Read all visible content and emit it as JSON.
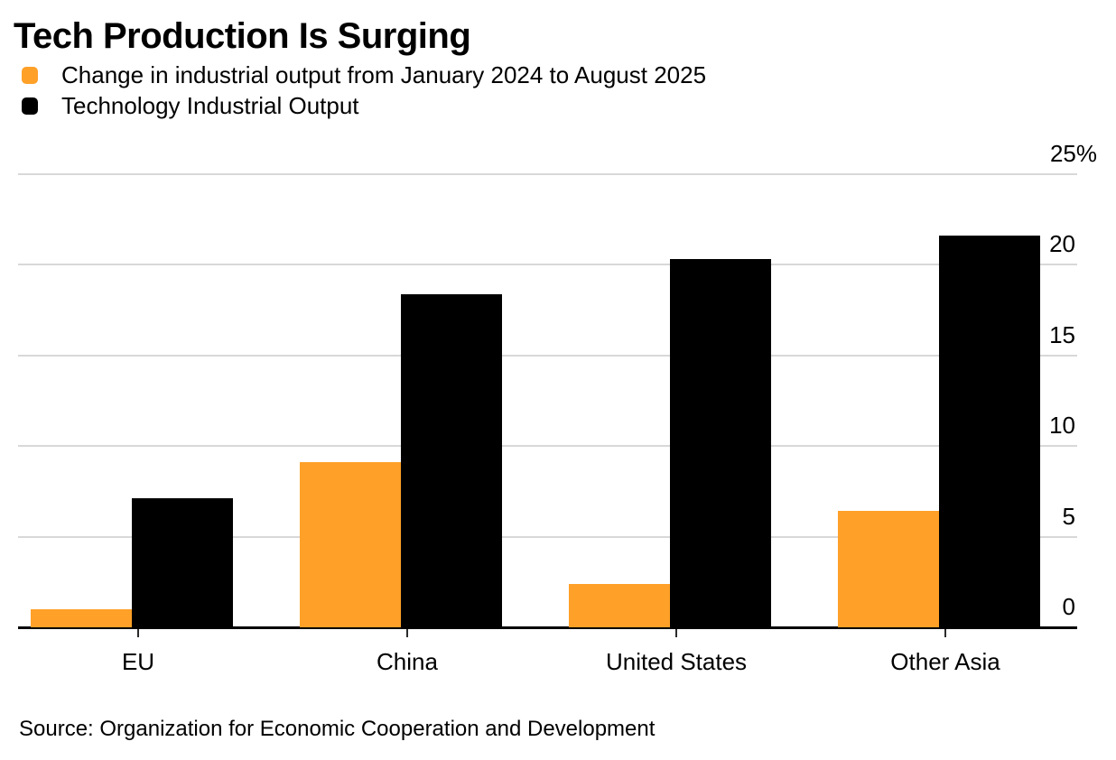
{
  "title": "Tech Production Is Surging",
  "legend": [
    {
      "label": "Change in industrial output from January 2024 to August 2025",
      "color": "#FFA028"
    },
    {
      "label": "Technology Industrial Output",
      "color": "#000000"
    }
  ],
  "source": "Source: Organization for Economic Cooperation and Development",
  "chart_data": {
    "type": "bar",
    "title": "Tech Production Is Surging",
    "categories": [
      "EU",
      "China",
      "United States",
      "Other Asia"
    ],
    "series": [
      {
        "name": "Change in industrial output from January 2024 to August 2025",
        "color": "#FFA028",
        "values": [
          1.0,
          9.1,
          2.4,
          6.4
        ]
      },
      {
        "name": "Technology Industrial Output",
        "color": "#000000",
        "values": [
          7.1,
          18.4,
          20.3,
          21.6
        ]
      }
    ],
    "xlabel": "",
    "ylabel": "",
    "ylim": [
      0,
      25
    ],
    "y_ticks": [
      0,
      5,
      10,
      15,
      20,
      25
    ],
    "y_tick_labels": [
      "0",
      "5",
      "10",
      "15",
      "20",
      "25%"
    ],
    "grid": true,
    "legend_position": "top-left",
    "y_axis_side": "right"
  }
}
